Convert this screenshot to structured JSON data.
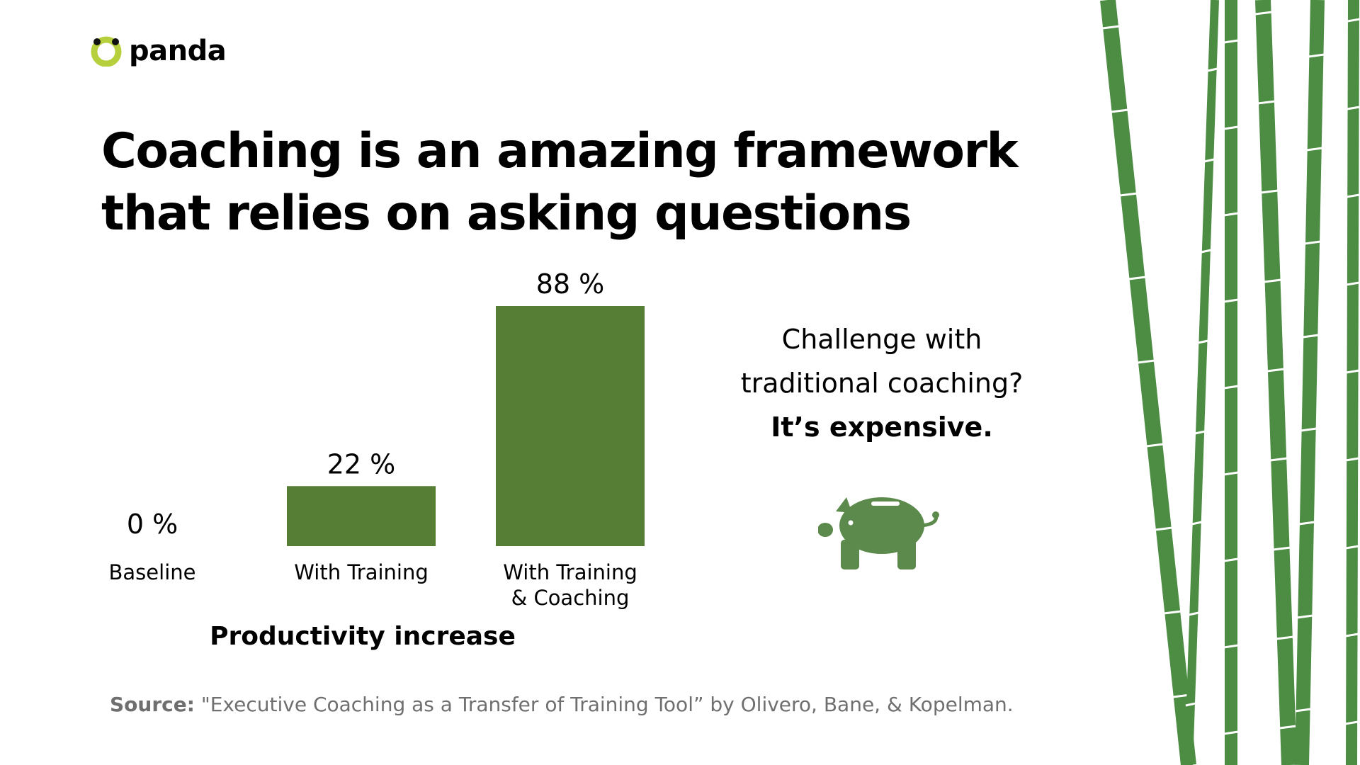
{
  "brand": {
    "name": "panda",
    "accent": "#b5cf3d",
    "bar_color": "#567f35",
    "bamboo_color": "#4c8c43"
  },
  "title": {
    "line1": "Coaching is an amazing framework",
    "line2": "that relies on asking questions"
  },
  "chart_data": {
    "type": "bar",
    "categories": [
      "Baseline",
      "With Training",
      "With Training\n& Coaching"
    ],
    "category_lines": [
      [
        "Baseline"
      ],
      [
        "With Training"
      ],
      [
        "With Training",
        "& Coaching"
      ]
    ],
    "values": [
      0,
      22,
      88
    ],
    "value_labels": [
      "0 %",
      "22 %",
      "88 %"
    ],
    "xlabel": "Productivity increase",
    "ylabel": "",
    "ylim": [
      0,
      88
    ],
    "grid": false,
    "legend": "none"
  },
  "callout": {
    "line1": "Challenge with",
    "line2": "traditional coaching?",
    "line3": "It’s expensive.",
    "icon": "piggy-bank-icon",
    "icon_color": "#5b8a4c"
  },
  "source": {
    "label": "Source:",
    "text": " \"Executive Coaching as a Transfer of Training Tool” by Olivero, Bane, & Kopelman."
  }
}
